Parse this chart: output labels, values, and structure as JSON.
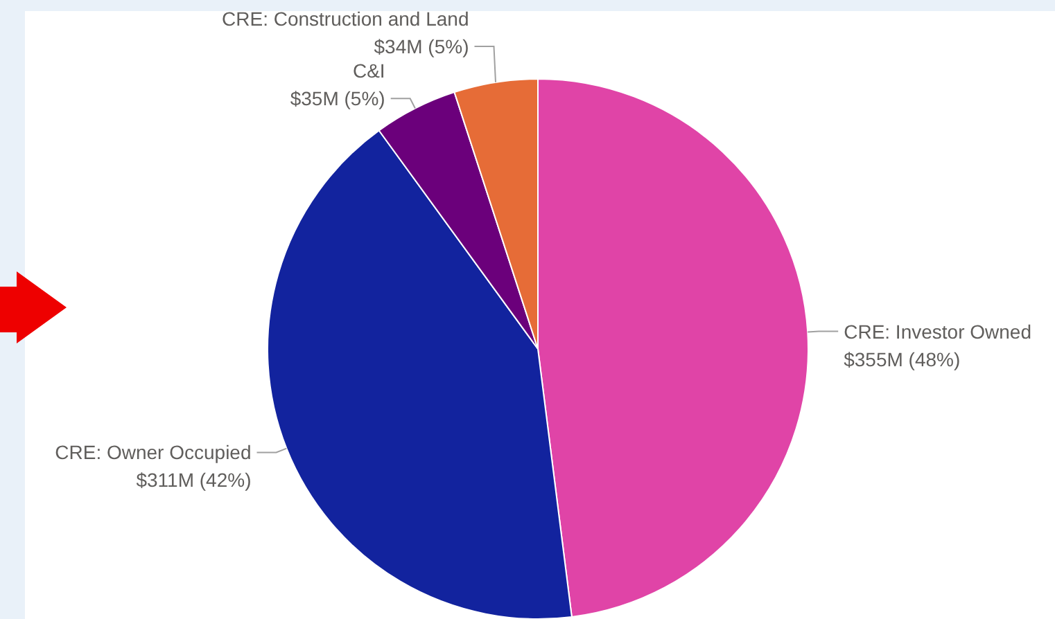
{
  "chart_data": {
    "type": "pie",
    "categories": [
      "CRE: Investor Owned",
      "CRE: Owner Occupied",
      "C&I",
      "CRE: Construction and Land"
    ],
    "values": [
      48,
      42,
      5,
      5
    ],
    "colors": [
      "#e044a7",
      "#12239e",
      "#6b007b",
      "#e66c37"
    ],
    "value_labels": [
      "$355M (48%)",
      "$311M (42%)",
      "$35M (5%)",
      "$34M (5%)"
    ]
  }
}
